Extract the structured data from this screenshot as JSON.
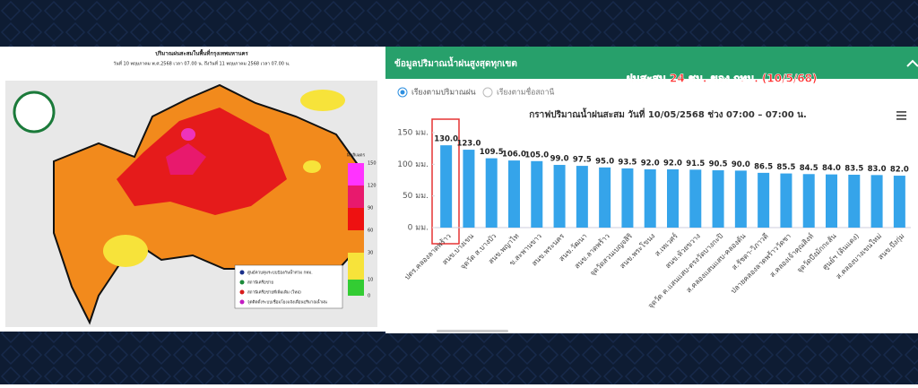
{
  "map": {
    "title": "ปริมาณฝนสะสมในพื้นที่กรุงเทพมหานคร",
    "subtitle": "วันที่ 10 พฤษภาคม พ.ศ.2568 เวลา 07.00 น. ถึงวันที่ 11 พฤษภาคม 2568 เวลา 07.00 น.",
    "unit": "มิลลิเมตร",
    "scale": [
      "150",
      "120",
      "90",
      "60",
      "30",
      "10",
      "0"
    ],
    "legend": [
      "ศูนย์ควบคุมระบบป้องกันน้ำท่วม กทม.",
      "สถานีเครือข่าย",
      "สถานีเครือข่ายที่เพิ่มเติม (ใหม่)",
      "จุดติดตั้งระบบเชื่อมโยงแจ้งเตือนปริมาณน้ำฝน"
    ]
  },
  "panel": {
    "header": "ข้อมูลปริมาณน้ำฝนสูงสุดทุกเขต",
    "overlay": "ฝนสะสม 24 ชม. ของ กทม. (10/5/68)",
    "options": [
      "เรียงตามปริมาณฝน",
      "เรียงตามชื่อสถานี"
    ]
  },
  "chart_data": {
    "type": "bar",
    "title": "กราฟปริมาณน้ำฝนสะสม วันที่ 10/05/2568 ช่วง 07:00 – 07:00 น.",
    "categories": [
      "ปตร.คลองลาดพร้าว",
      "สนข.บางเขน",
      "จุดวัด ส.บางบัว",
      "สนข.พญาไท",
      "ข.สะพานขาว",
      "สนข.พระนคร",
      "สนข.วัฒนา",
      "สนข.ลาดพร้าว",
      "จุดวัดสวนเบญจสิริ",
      "สนข.พระโขนง",
      "ส.เทเวศร์",
      "สนข.ห้วยขวาง",
      "จุดวัด ค.แสนแสบ-ตรงวัดบางกะปิ",
      "ส.คลองแสนแสบ-คลองตัน",
      "ส.รัชดา-วิภาวดี",
      "ปลายคลองลาดพร้าววัดชา",
      "ส.คลองเจ้าคุณสิงห์",
      "จุดวัดบึงมักกะสัน",
      "ศูนย์ฯ (ดินแดง)",
      "ส.คลองบางเขนใหม่",
      "สนข.บึงกุ่ม"
    ],
    "values": [
      130,
      123,
      109.5,
      106,
      105,
      99,
      97.5,
      95,
      93.5,
      92,
      92,
      91.5,
      90.5,
      90,
      86.5,
      85.5,
      84.5,
      84,
      83.5,
      83,
      82
    ],
    "value_labels": [
      "130.0",
      "123.0",
      "109.5",
      "106.0",
      "105.0",
      "99.0",
      "97.5",
      "95.0",
      "93.5",
      "92.0",
      "92.0",
      "91.5",
      "90.5",
      "90.0",
      "86.5",
      "85.5",
      "84.5",
      "84.0",
      "83.5",
      "83.0",
      "82.0"
    ],
    "color": "#35a4ea",
    "ylim": [
      0,
      150
    ],
    "yticks": [
      {
        "value": 0,
        "label": "0 มม."
      },
      {
        "value": 50,
        "label": "50 มม."
      },
      {
        "value": 100,
        "label": "100 มม."
      },
      {
        "value": 150,
        "label": "150 มม."
      }
    ],
    "grid": false
  }
}
